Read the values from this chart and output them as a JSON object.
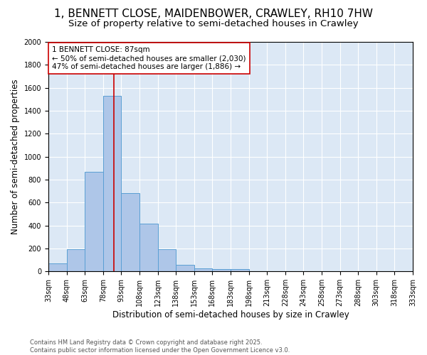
{
  "title": "1, BENNETT CLOSE, MAIDENBOWER, CRAWLEY, RH10 7HW",
  "subtitle": "Size of property relative to semi-detached houses in Crawley",
  "xlabel": "Distribution of semi-detached houses by size in Crawley",
  "ylabel": "Number of semi-detached properties",
  "bar_edges": [
    33,
    48,
    63,
    78,
    93,
    108,
    123,
    138,
    153,
    168,
    183,
    198,
    213,
    228,
    243,
    258,
    273,
    288,
    303,
    318,
    333
  ],
  "bar_heights": [
    70,
    195,
    870,
    1530,
    680,
    415,
    195,
    55,
    25,
    20,
    20,
    0,
    0,
    0,
    0,
    0,
    0,
    0,
    0,
    0
  ],
  "bar_color": "#aec6e8",
  "bar_edgecolor": "#5a9fd4",
  "property_value": 87,
  "red_line_color": "#cc0000",
  "annotation_line1": "1 BENNETT CLOSE: 87sqm",
  "annotation_line2": "← 50% of semi-detached houses are smaller (2,030)",
  "annotation_line3": "47% of semi-detached houses are larger (1,886) →",
  "annotation_box_edgecolor": "#cc0000",
  "ylim": [
    0,
    2000
  ],
  "yticks": [
    0,
    200,
    400,
    600,
    800,
    1000,
    1200,
    1400,
    1600,
    1800,
    2000
  ],
  "background_color": "#dce8f5",
  "footer_text": "Contains HM Land Registry data © Crown copyright and database right 2025.\nContains public sector information licensed under the Open Government Licence v3.0.",
  "title_fontsize": 11,
  "subtitle_fontsize": 9.5,
  "tick_label_fontsize": 7,
  "ylabel_fontsize": 8.5,
  "xlabel_fontsize": 8.5,
  "annotation_fontsize": 7.5
}
